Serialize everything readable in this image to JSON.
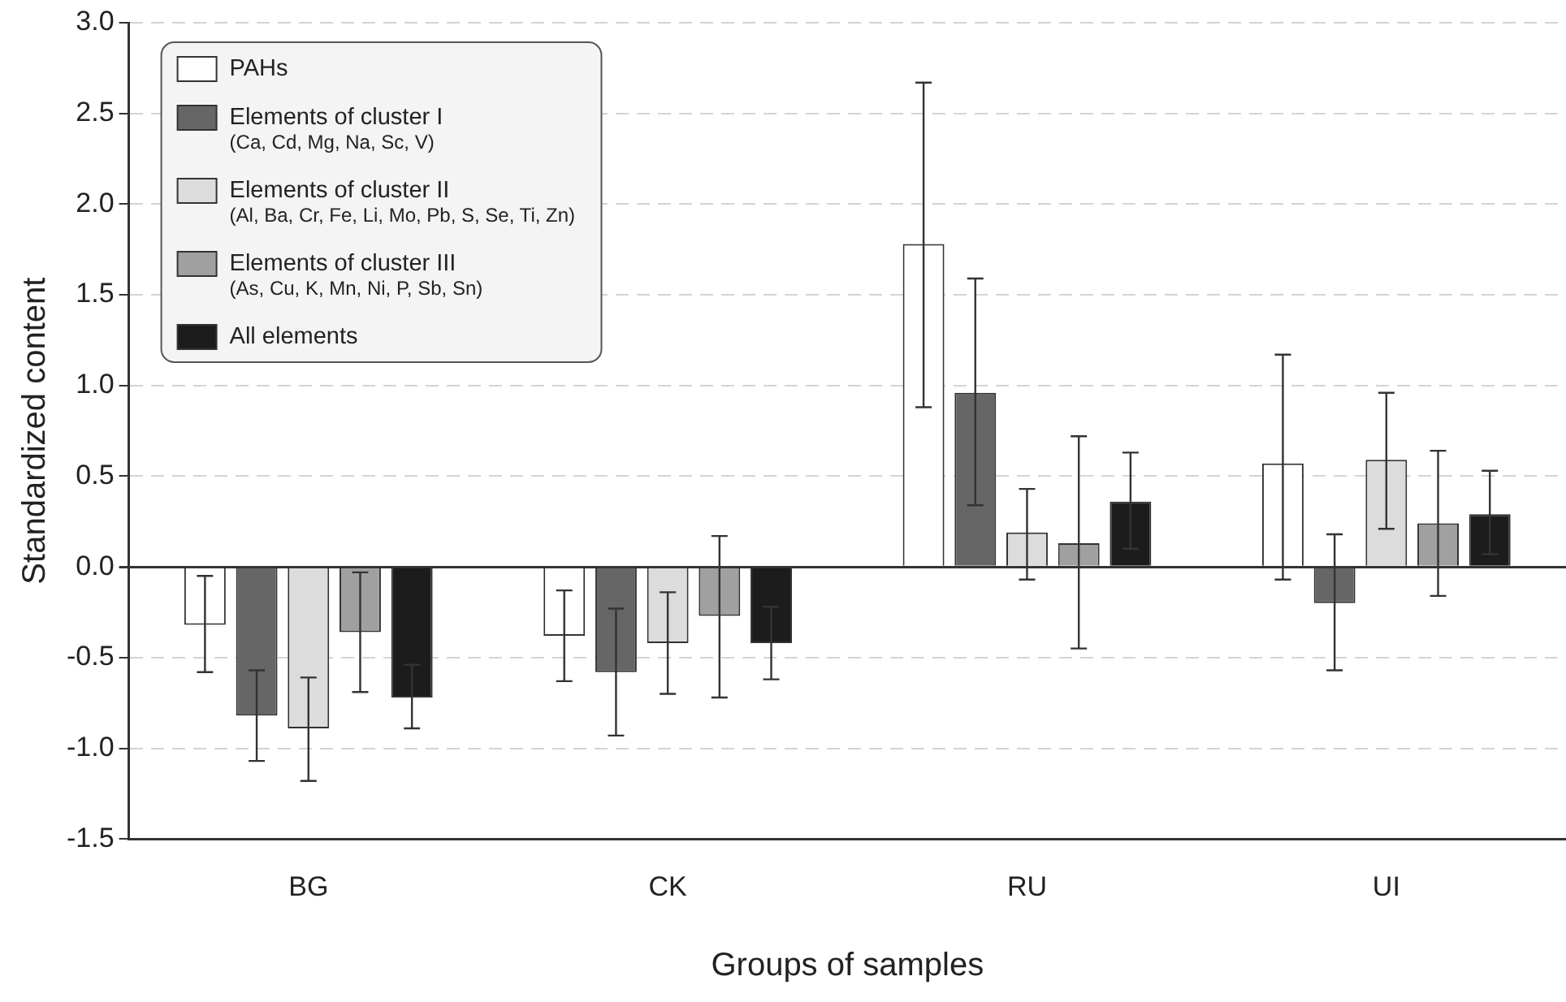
{
  "chart_data": {
    "type": "bar",
    "xlabel": "Groups of samples",
    "ylabel": "Standardized content",
    "categories": [
      "BG",
      "CK",
      "RU",
      "UI"
    ],
    "series": [
      {
        "name": "PAHs",
        "color": "#ffffff",
        "values": [
          -0.32,
          -0.38,
          1.78,
          0.57
        ],
        "errors": [
          [
            -0.58,
            -0.05
          ],
          [
            -0.63,
            -0.13
          ],
          [
            0.88,
            2.67
          ],
          [
            -0.07,
            1.17
          ]
        ]
      },
      {
        "name": "Elements of cluster I\n(Ca, Cd, Mg, Na, Sc, V)",
        "color": "#666666",
        "values": [
          -0.82,
          -0.58,
          0.96,
          -0.2
        ],
        "errors": [
          [
            -1.07,
            -0.57
          ],
          [
            -0.93,
            -0.23
          ],
          [
            0.34,
            1.59
          ],
          [
            -0.57,
            0.18
          ]
        ]
      },
      {
        "name": "Elements of cluster II\n(Al, Ba, Cr, Fe, Li, Mo, Pb, S, Se, Ti, Zn)",
        "color": "#dcdcdc",
        "values": [
          -0.89,
          -0.42,
          0.19,
          0.59
        ],
        "errors": [
          [
            -1.18,
            -0.61
          ],
          [
            -0.7,
            -0.14
          ],
          [
            -0.07,
            0.43
          ],
          [
            0.21,
            0.96
          ]
        ]
      },
      {
        "name": "Elements of cluster III\n(As, Cu, K, Mn, Ni, P, Sb, Sn)",
        "color": "#a0a0a0",
        "values": [
          -0.36,
          -0.27,
          0.13,
          0.24
        ],
        "errors": [
          [
            -0.69,
            -0.03
          ],
          [
            -0.72,
            0.17
          ],
          [
            -0.45,
            0.72
          ],
          [
            -0.16,
            0.64
          ]
        ]
      },
      {
        "name": "All elements",
        "color": "#1c1c1c",
        "values": [
          -0.72,
          -0.42,
          0.36,
          0.29
        ],
        "errors": [
          [
            -0.89,
            -0.54
          ],
          [
            -0.62,
            -0.22
          ],
          [
            0.1,
            0.63
          ],
          [
            0.07,
            0.53
          ]
        ]
      }
    ],
    "ylim": [
      -1.5,
      3.0
    ],
    "yticks": [
      {
        "value": -1.5,
        "label": "-1.5"
      },
      {
        "value": -1.0,
        "label": "-1.0"
      },
      {
        "value": -0.5,
        "label": "-0.5"
      },
      {
        "value": 0,
        "label": "0.0"
      },
      {
        "value": 0.5,
        "label": "0.5"
      },
      {
        "value": 1.0,
        "label": "1.0"
      },
      {
        "value": 1.5,
        "label": "1.5"
      },
      {
        "value": 2.0,
        "label": "2.0"
      },
      {
        "value": 2.5,
        "label": "2.5"
      },
      {
        "value": 3.0,
        "label": "3.0"
      }
    ],
    "grid": "y",
    "legend": "top left"
  }
}
